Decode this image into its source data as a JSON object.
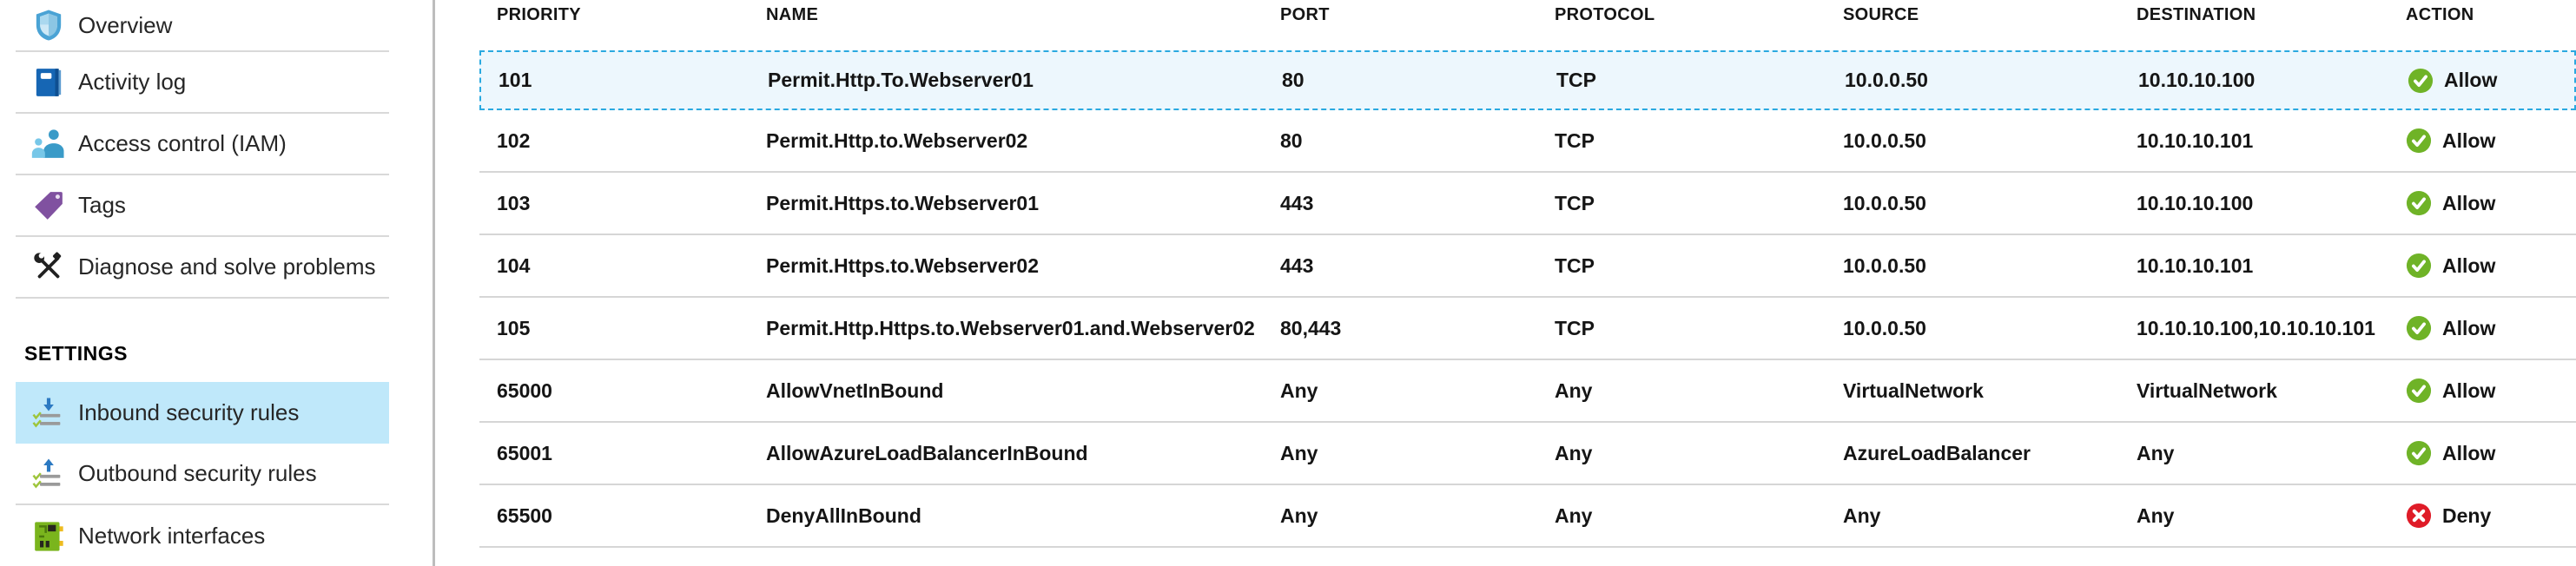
{
  "sidebar": {
    "sections": [
      {
        "items": [
          {
            "label": "Overview",
            "icon": "shield-icon"
          },
          {
            "label": "Activity log",
            "icon": "book-icon"
          },
          {
            "label": "Access control (IAM)",
            "icon": "people-icon"
          },
          {
            "label": "Tags",
            "icon": "tag-icon"
          },
          {
            "label": "Diagnose and solve problems",
            "icon": "tools-icon"
          }
        ]
      },
      {
        "header": "SETTINGS",
        "items": [
          {
            "label": "Inbound security rules",
            "icon": "inbound-rules-icon",
            "selected": true
          },
          {
            "label": "Outbound security rules",
            "icon": "outbound-rules-icon"
          },
          {
            "label": "Network interfaces",
            "icon": "nic-icon",
            "no_separator": true
          }
        ]
      }
    ]
  },
  "table": {
    "columns": [
      "PRIORITY",
      "NAME",
      "PORT",
      "PROTOCOL",
      "SOURCE",
      "DESTINATION",
      "ACTION"
    ],
    "rows": [
      {
        "priority": "101",
        "name": "Permit.Http.To.Webserver01",
        "port": "80",
        "protocol": "TCP",
        "source": "10.0.0.50",
        "destination": "10.10.10.100",
        "action": "Allow",
        "selected": true
      },
      {
        "priority": "102",
        "name": "Permit.Http.to.Webserver02",
        "port": "80",
        "protocol": "TCP",
        "source": "10.0.0.50",
        "destination": "10.10.10.101",
        "action": "Allow"
      },
      {
        "priority": "103",
        "name": "Permit.Https.to.Webserver01",
        "port": "443",
        "protocol": "TCP",
        "source": "10.0.0.50",
        "destination": "10.10.10.100",
        "action": "Allow"
      },
      {
        "priority": "104",
        "name": "Permit.Https.to.Webserver02",
        "port": "443",
        "protocol": "TCP",
        "source": "10.0.0.50",
        "destination": "10.10.10.101",
        "action": "Allow"
      },
      {
        "priority": "105",
        "name": "Permit.Http.Https.to.Webserver01.and.Webserver02",
        "port": "80,443",
        "protocol": "TCP",
        "source": "10.0.0.50",
        "destination": "10.10.10.100,10.10.10.101",
        "action": "Allow"
      },
      {
        "priority": "65000",
        "name": "AllowVnetInBound",
        "port": "Any",
        "protocol": "Any",
        "source": "VirtualNetwork",
        "destination": "VirtualNetwork",
        "action": "Allow"
      },
      {
        "priority": "65001",
        "name": "AllowAzureLoadBalancerInBound",
        "port": "Any",
        "protocol": "Any",
        "source": "AzureLoadBalancer",
        "destination": "Any",
        "action": "Allow"
      },
      {
        "priority": "65500",
        "name": "DenyAllInBound",
        "port": "Any",
        "protocol": "Any",
        "source": "Any",
        "destination": "Any",
        "action": "Deny"
      }
    ]
  },
  "colors": {
    "selection_border": "#2aa9e0",
    "selected_row_bg": "#edf7fd",
    "sidebar_selected_bg": "#bfe8fa",
    "allow_green": "#6fb327",
    "deny_red": "#df1c28"
  }
}
